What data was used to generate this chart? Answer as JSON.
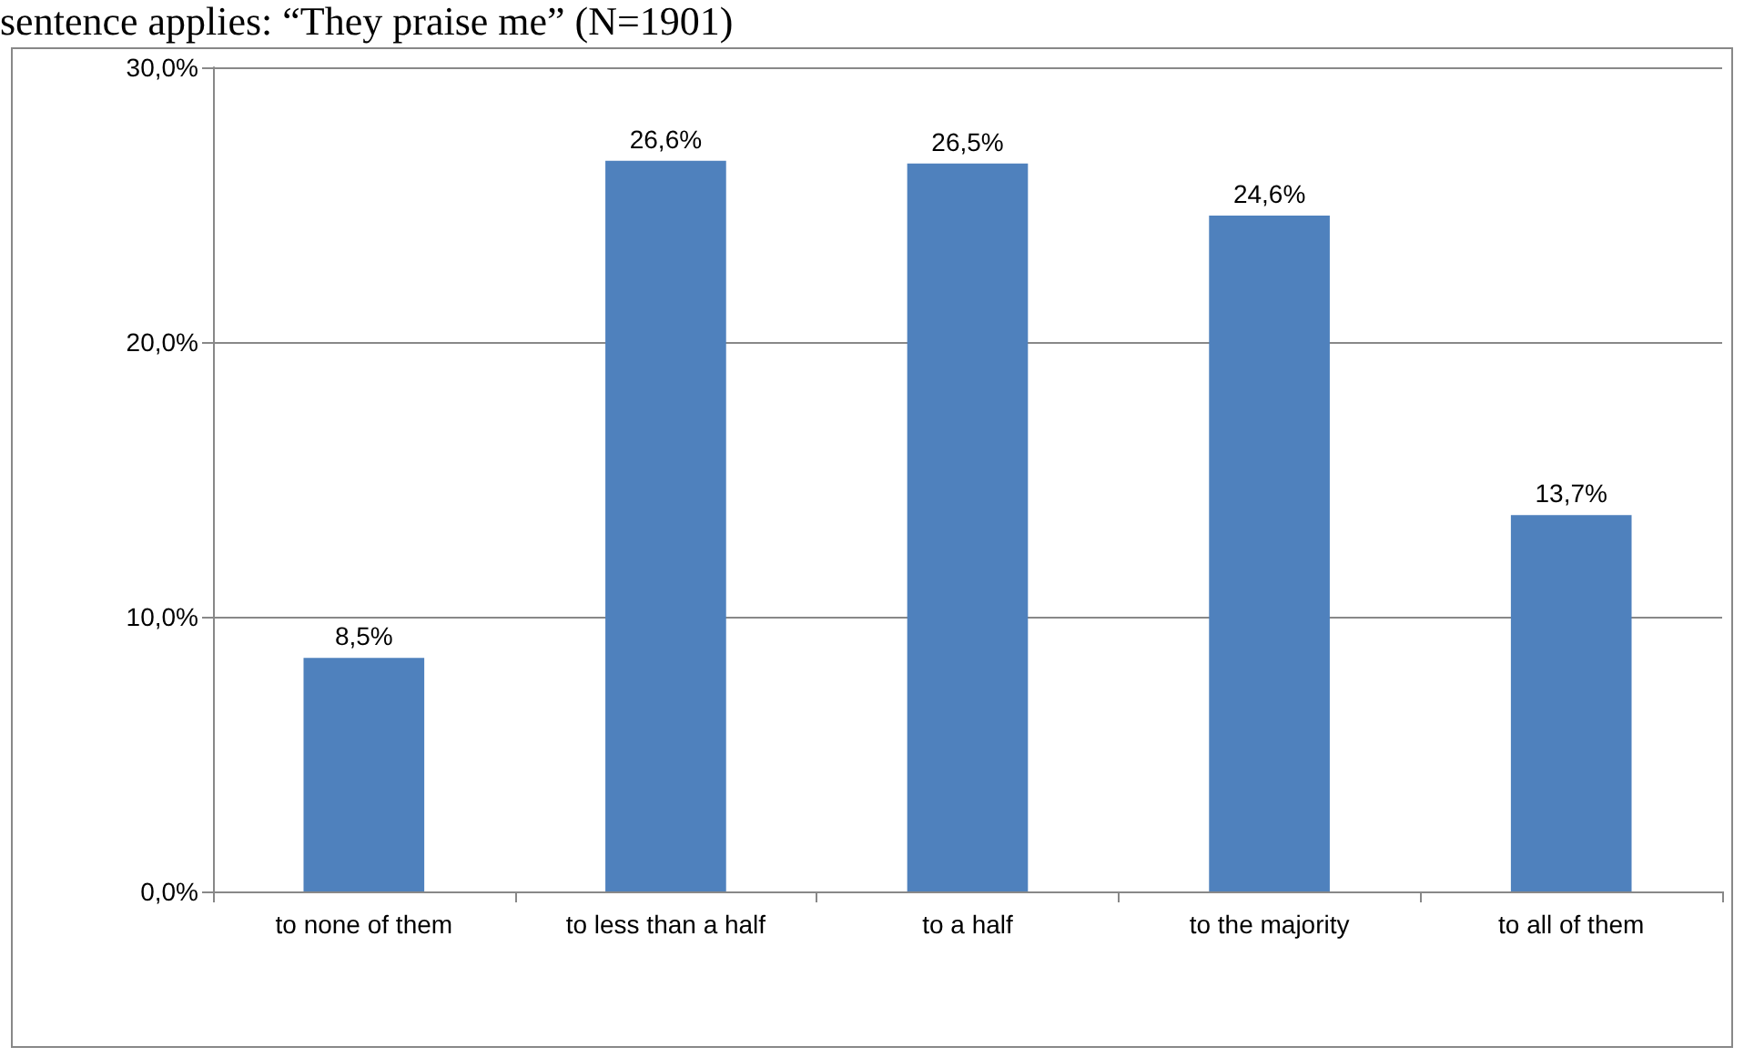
{
  "chart_data": {
    "type": "bar",
    "title": "sentence applies: “They praise me” (N=1901)",
    "categories": [
      "to none of them",
      "to less than a half",
      "to a half",
      "to the majority",
      "to all of them"
    ],
    "values": [
      8.5,
      26.6,
      26.5,
      24.6,
      13.7
    ],
    "value_labels": [
      "8,5%",
      "26,6%",
      "26,5%",
      "24,6%",
      "13,7%"
    ],
    "color": "#4f81bd",
    "ylim": [
      0,
      30
    ],
    "yticks": [
      {
        "value": 0,
        "label": "0,0%"
      },
      {
        "value": 10,
        "label": "10,0%"
      },
      {
        "value": 20,
        "label": "20,0%"
      },
      {
        "value": 30,
        "label": "30,0%"
      }
    ],
    "grid": "y"
  }
}
